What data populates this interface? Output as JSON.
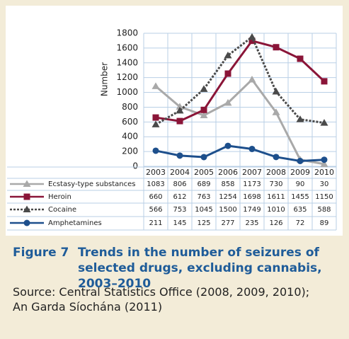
{
  "chart_data": {
    "type": "line",
    "figure_label": "Figure 7",
    "title": "Trends in the number of seizures of selected drugs, excluding cannabis, 2003–2010",
    "source": [
      "Source: Central Statistics Office (2008, 2009, 2010);",
      "An Garda Síochána (2011)"
    ],
    "ylabel": "Number",
    "categories": [
      "2003",
      "2004",
      "2005",
      "2006",
      "2007",
      "2008",
      "2009",
      "2010"
    ],
    "ylim": [
      0,
      1800
    ],
    "yticks": [
      0,
      200,
      400,
      600,
      800,
      1000,
      1200,
      1400,
      1600,
      1800
    ],
    "grid": true,
    "series": [
      {
        "name": "Ecstasy-type substances",
        "color": "#a9a9a9",
        "marker": "triangle",
        "line_style": "solid",
        "values": [
          1083,
          806,
          689,
          858,
          1173,
          730,
          90,
          30
        ]
      },
      {
        "name": "Heroin",
        "color": "#8a1538",
        "marker": "square",
        "line_style": "solid",
        "values": [
          660,
          612,
          763,
          1254,
          1698,
          1611,
          1455,
          1150
        ]
      },
      {
        "name": "Cocaine",
        "color": "#4a4a4a",
        "marker": "triangle",
        "line_style": "dotted",
        "values": [
          566,
          753,
          1045,
          1500,
          1749,
          1010,
          635,
          588
        ]
      },
      {
        "name": "Amphetamines",
        "color": "#1d4f8c",
        "marker": "circle",
        "line_style": "solid",
        "values": [
          211,
          145,
          125,
          277,
          235,
          126,
          72,
          89
        ]
      }
    ]
  }
}
